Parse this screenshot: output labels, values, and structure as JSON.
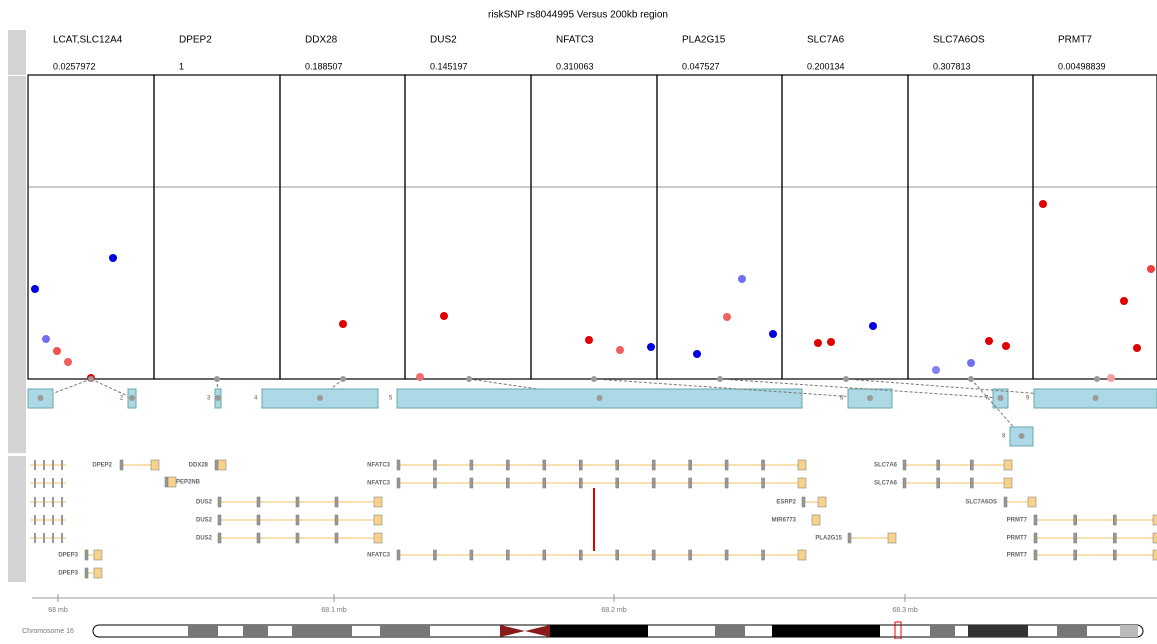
{
  "title": "riskSNP rs8044995 Versus 200kb region",
  "panels": [
    {
      "gene": "LCAT,SLC12A4",
      "value": "0.0257972"
    },
    {
      "gene": "DPEP2",
      "value": "1"
    },
    {
      "gene": "DDX28",
      "value": "0.188507"
    },
    {
      "gene": "DUS2",
      "value": "0.145197"
    },
    {
      "gene": "NFATC3",
      "value": "0.310063"
    },
    {
      "gene": "PLA2G15",
      "value": "0.047527"
    },
    {
      "gene": "SLC7A6",
      "value": "0.200134"
    },
    {
      "gene": "SLC7A6OS",
      "value": "0.307813"
    },
    {
      "gene": "PRMT7",
      "value": "0.00498839"
    }
  ],
  "region_labels": [
    "2",
    "3",
    "4",
    "5",
    "6",
    "7",
    "9",
    "8"
  ],
  "gene_labels": [
    "DPEP2",
    "DDX28",
    "DPEP2NB",
    "DUS2",
    "DUS2",
    "DUS2",
    "DPEP3",
    "DPEP3",
    "NFATC3",
    "NFATC3",
    "NFATC3",
    "ESRP2",
    "MIR6773",
    "PLA2G15",
    "SLC7A6",
    "SLC7A6",
    "SLC7A6OS",
    "PRMT7",
    "PRMT7",
    "PRMT7"
  ],
  "axis_ticks": [
    "68 mb",
    "68.1 mb",
    "68.2 mb",
    "68.3 mb"
  ],
  "chromosome": "Chromosome 16"
}
